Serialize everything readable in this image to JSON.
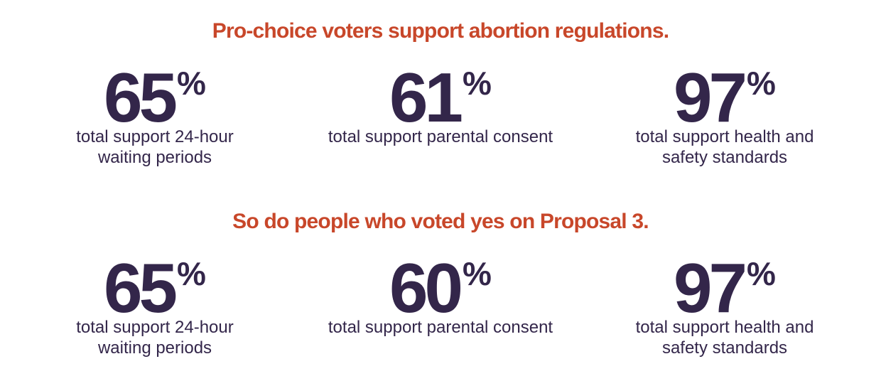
{
  "sections": [
    {
      "title": "Pro-choice voters support abortion regulations.",
      "stats": [
        {
          "value": 65,
          "unit": "%",
          "lines": [
            "total support 24-hour",
            "waiting periods"
          ]
        },
        {
          "value": 61,
          "unit": "%",
          "lines": [
            "total support parental consent"
          ]
        },
        {
          "value": 97,
          "unit": "%",
          "lines": [
            "total support health and",
            "safety standards"
          ]
        }
      ]
    },
    {
      "title": "So do people who voted yes on Proposal 3.",
      "stats": [
        {
          "value": 65,
          "unit": "%",
          "lines": [
            "total support 24-hour",
            "waiting periods"
          ]
        },
        {
          "value": 60,
          "unit": "%",
          "lines": [
            "total support parental consent"
          ]
        },
        {
          "value": 97,
          "unit": "%",
          "lines": [
            "total support health and",
            "safety standards"
          ]
        }
      ]
    }
  ]
}
